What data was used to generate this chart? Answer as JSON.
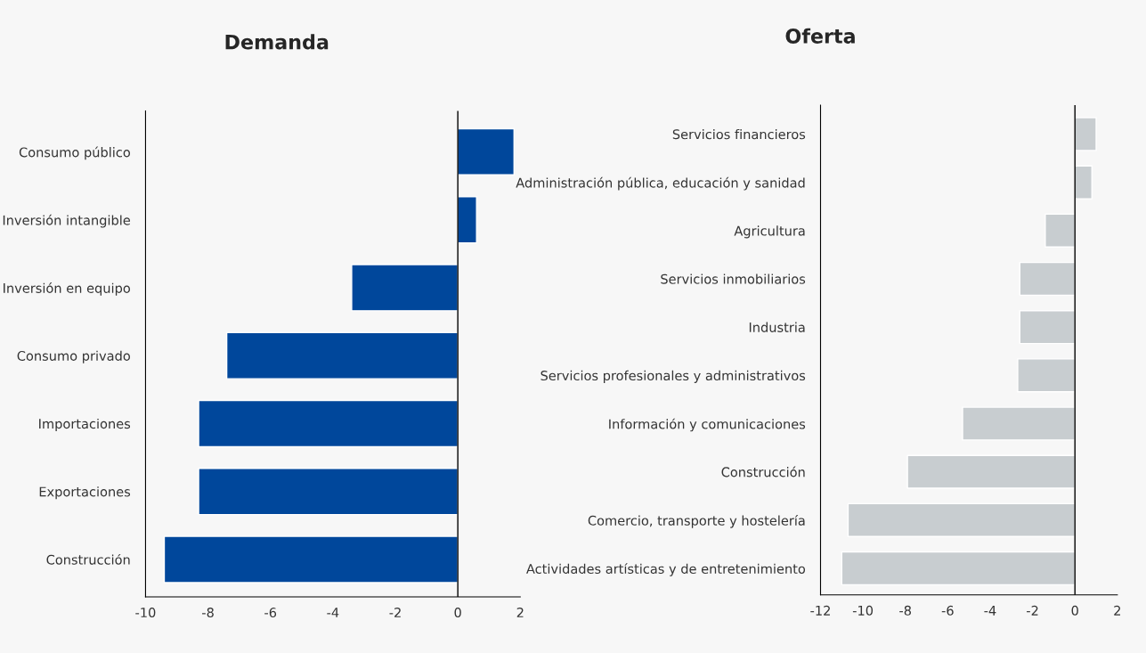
{
  "chart_data": [
    {
      "type": "bar",
      "orientation": "horizontal",
      "title": "Demanda",
      "categories": [
        "Consumo público",
        "Inversión intangible",
        "Inversión en equipo",
        "Consumo privado",
        "Importaciones",
        "Exportaciones",
        "Construcción"
      ],
      "series": [
        {
          "color": "#00479b",
          "values": [
            1.8,
            0.6,
            -3.4,
            -7.4,
            -8.3,
            -8.3,
            -9.4
          ]
        }
      ],
      "xlim": [
        -10,
        2
      ],
      "xticks": [
        -10,
        -8,
        -6,
        -4,
        -2,
        0,
        2
      ],
      "ref_lines": [
        {
          "axis": "x",
          "value": 0,
          "color": "#000000"
        }
      ],
      "grid": false,
      "legend": false
    },
    {
      "type": "bar",
      "orientation": "horizontal",
      "title": "Oferta",
      "categories": [
        "Servicios financieros",
        "Administración pública, educación y sanidad",
        "Agricultura",
        "Servicios inmobiliarios",
        "Industria",
        "Servicios profesionales y administrativos",
        "Información y comunicaciones",
        "Construcción",
        "Comercio, transporte y hostelería",
        "Actividades artísticas y de entretenimiento"
      ],
      "series": [
        {
          "color": "#c8cdd0",
          "values": [
            1.0,
            0.8,
            -1.4,
            -2.6,
            -2.6,
            -2.7,
            -5.3,
            -7.9,
            -10.7,
            -11.0
          ]
        }
      ],
      "xlim": [
        -12,
        2
      ],
      "xticks": [
        -12,
        -10,
        -8,
        -6,
        -4,
        -2,
        0,
        2
      ],
      "ref_lines": [
        {
          "axis": "x",
          "value": 0,
          "color": "#000000"
        }
      ],
      "grid": false,
      "legend": false
    }
  ]
}
